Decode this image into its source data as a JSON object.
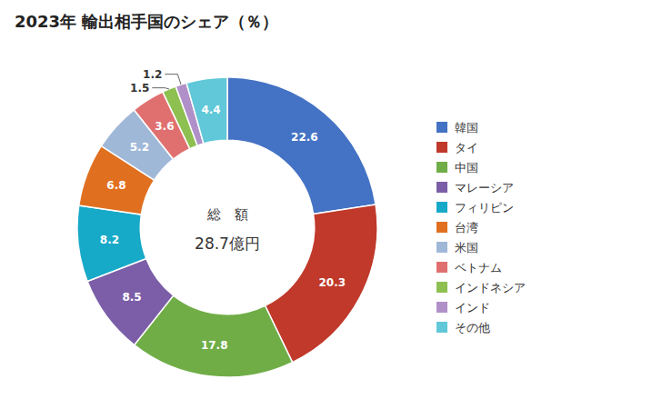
{
  "chart_data": {
    "type": "donut",
    "title": "2023年 輸出相手国のシェア（％）",
    "categories": [
      "韓国",
      "タイ",
      "中国",
      "マレーシア",
      "フィリピン",
      "台湾",
      "米国",
      "ベトナム",
      "インドネシア",
      "インド",
      "その他"
    ],
    "values": [
      22.6,
      20.3,
      17.8,
      8.5,
      8.2,
      6.8,
      5.2,
      3.6,
      1.5,
      1.2,
      4.4
    ],
    "colors": [
      "#4472C4",
      "#C0392B",
      "#70AD47",
      "#7B5EA7",
      "#17A9C8",
      "#E07020",
      "#A0B8D8",
      "#E07070",
      "#8DC050",
      "#B090C8",
      "#60C8D8"
    ],
    "annotations": [
      "総　額",
      "28.7億円"
    ],
    "data_labels": true,
    "legend": "right"
  }
}
